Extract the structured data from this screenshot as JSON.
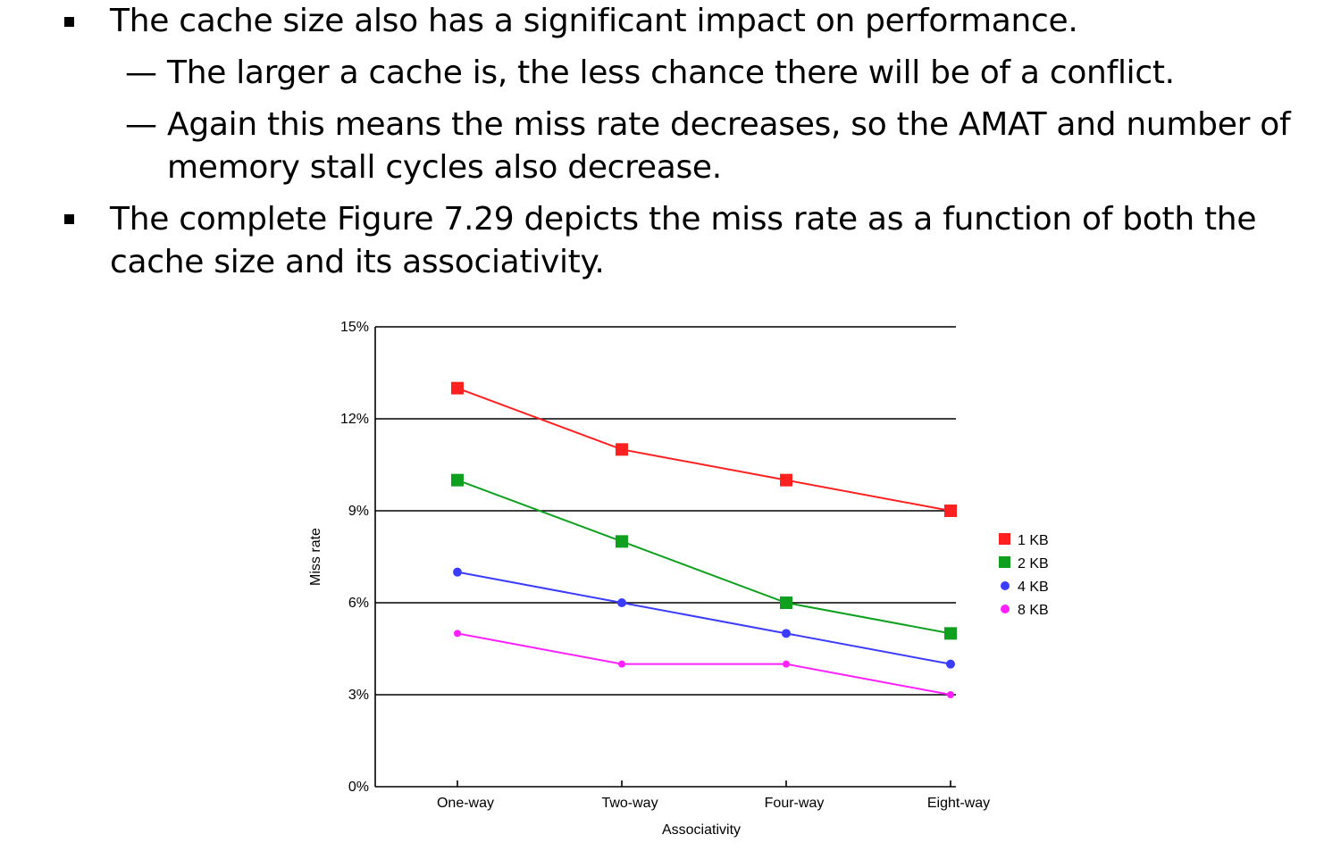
{
  "bullets": {
    "b1": "The cache size also has a significant impact on performance.",
    "b1_sub1": "The larger a cache is, the less chance there will be of a conflict.",
    "b1_sub2_line1": "Again this means the miss rate decreases, so the AMAT and number of",
    "b1_sub2_line2": "memory stall cycles also decrease.",
    "b2_line1": "The complete Figure 7.29 depicts the miss rate as a function of both the",
    "b2_line2": "cache size and its associativity.",
    "dash": "—"
  },
  "chart_data": {
    "type": "line",
    "categories": [
      "One-way",
      "Two-way",
      "Four-way",
      "Eight-way"
    ],
    "xlabel": "Associativity",
    "ylabel": "Miss rate",
    "ylim": [
      0,
      15
    ],
    "yticks": [
      "0%",
      "3%",
      "6%",
      "9%",
      "12%",
      "15%"
    ],
    "grid": true,
    "legend_position": "right",
    "series": [
      {
        "name": "1 KB",
        "values": [
          13,
          11,
          10,
          9
        ],
        "color": "#ff2020",
        "marker": "square-large"
      },
      {
        "name": "2 KB",
        "values": [
          10,
          8,
          6,
          5
        ],
        "color": "#10a020",
        "marker": "square-large"
      },
      {
        "name": "4 KB",
        "values": [
          7,
          6,
          5,
          4
        ],
        "color": "#3c3cff",
        "marker": "circle"
      },
      {
        "name": "8 KB",
        "values": [
          5,
          4,
          4,
          3
        ],
        "color": "#ff20ff",
        "marker": "circle-small"
      }
    ]
  }
}
